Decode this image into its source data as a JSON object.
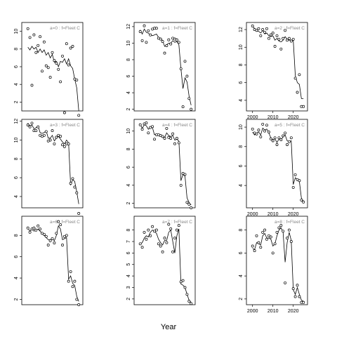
{
  "xlabel": "Year",
  "chart_data": [
    {
      "type": "scatter",
      "label": "a=0 : f=Fleet C",
      "xlim": [
        1997,
        2027
      ],
      "ylim": [
        1,
        11
      ],
      "yticks": [
        2,
        4,
        6,
        8,
        10
      ],
      "xticks": [],
      "x": [
        2000,
        2001,
        2002,
        2003,
        2004,
        2005,
        2006,
        2007,
        2008,
        2009,
        2010,
        2011,
        2012,
        2013,
        2014,
        2015,
        2016,
        2017,
        2018,
        2019,
        2020,
        2021,
        2022,
        2023,
        2024,
        2025
      ],
      "obs": [
        10.3,
        9.3,
        3.9,
        9.6,
        7.6,
        8.4,
        9.4,
        5.5,
        8.8,
        6.1,
        5.9,
        4.8,
        7.6,
        6.7,
        6.4,
        5.7,
        4.3,
        7.2,
        0.8,
        8.6,
        6.2,
        8.1,
        8.3,
        4.6,
        4.5,
        0.5
      ],
      "fit": [
        8.2,
        7.9,
        8.3,
        8.0,
        8.2,
        7.6,
        8.0,
        7.6,
        7.9,
        7.3,
        7.6,
        7.0,
        7.4,
        6.5,
        6.6,
        6.0,
        6.6,
        6.5,
        6.9,
        6.3,
        6.9,
        6.1,
        5.8,
        4.6,
        3.6,
        1.0
      ]
    },
    {
      "type": "scatter",
      "label": "a=3 : f=Fleet C",
      "xlim": [
        1997,
        2027
      ],
      "ylim": [
        2.8,
        12.2
      ],
      "yticks": [
        4,
        6,
        8,
        10,
        12
      ],
      "xticks": [],
      "x": [
        2000,
        2001,
        2002,
        2003,
        2004,
        2005,
        2006,
        2007,
        2008,
        2009,
        2010,
        2011,
        2012,
        2013,
        2014,
        2015,
        2016,
        2017,
        2018,
        2019,
        2020,
        2021,
        2022,
        2023,
        2024,
        2025
      ],
      "obs": [
        11.6,
        11.4,
        11.8,
        11.0,
        11.0,
        11.4,
        10.5,
        10.4,
        10.5,
        10.9,
        9.9,
        10.0,
        11.0,
        9.6,
        10.3,
        10.5,
        10.4,
        9.5,
        9.3,
        9.6,
        9.6,
        5.4,
        5.9,
        5.0,
        4.4,
        2.2
      ],
      "fit": [
        11.8,
        11.5,
        11.6,
        11.2,
        11.3,
        11.5,
        10.8,
        10.7,
        10.8,
        11.0,
        10.2,
        10.2,
        10.5,
        9.9,
        10.2,
        10.4,
        10.1,
        9.8,
        9.6,
        10.0,
        9.7,
        5.2,
        5.8,
        5.6,
        4.5,
        3.2
      ]
    },
    {
      "type": "scatter",
      "label": "a=6 : f=Fleet C",
      "xlim": [
        1997,
        2027
      ],
      "ylim": [
        1.5,
        9.8
      ],
      "yticks": [
        2,
        4,
        6,
        8
      ],
      "xticks": [],
      "x": [
        2000,
        2001,
        2002,
        2003,
        2004,
        2005,
        2006,
        2007,
        2008,
        2009,
        2010,
        2011,
        2012,
        2013,
        2014,
        2015,
        2016,
        2017,
        2018,
        2019,
        2020,
        2021,
        2022,
        2023,
        2024,
        2025
      ],
      "obs": [
        8.7,
        8.3,
        8.6,
        8.7,
        8.5,
        8.9,
        8.6,
        8.2,
        8.1,
        7.9,
        7.1,
        7.5,
        7.7,
        7.3,
        8.2,
        9.3,
        9.0,
        7.1,
        7.9,
        8.0,
        3.7,
        4.6,
        3.2,
        3.7,
        2.0,
        1.5
      ],
      "fit": [
        8.7,
        8.4,
        8.6,
        8.4,
        8.5,
        8.6,
        8.4,
        8.2,
        8.0,
        7.8,
        7.6,
        7.6,
        7.7,
        7.5,
        8.0,
        8.9,
        8.6,
        7.6,
        7.7,
        7.8,
        3.9,
        4.2,
        3.5,
        3.3,
        2.3,
        1.8
      ]
    },
    {
      "type": "scatter",
      "label": "a=1 : f=Fleet C",
      "xlim": [
        1997,
        2027
      ],
      "ylim": [
        1.8,
        12.5
      ],
      "yticks": [
        2,
        4,
        6,
        8,
        10,
        12
      ],
      "xticks": [],
      "x": [
        2000,
        2001,
        2002,
        2003,
        2004,
        2005,
        2006,
        2007,
        2008,
        2009,
        2010,
        2011,
        2012,
        2013,
        2014,
        2015,
        2016,
        2017,
        2018,
        2019,
        2020,
        2021,
        2022,
        2023,
        2024,
        2025
      ],
      "obs": [
        11.4,
        10.3,
        12.1,
        10.1,
        11.5,
        11.0,
        11.7,
        11.8,
        11.8,
        10.6,
        10.5,
        10.2,
        8.8,
        9.7,
        10.4,
        9.9,
        10.6,
        10.5,
        10.4,
        10.1,
        6.9,
        2.3,
        7.8,
        6.0,
        3.3,
        2.0
      ],
      "fit": [
        11.6,
        11.1,
        11.7,
        11.3,
        11.2,
        11.0,
        10.9,
        11.0,
        11.1,
        10.7,
        10.6,
        10.3,
        9.6,
        9.8,
        10.0,
        10.0,
        10.3,
        10.1,
        10.2,
        9.8,
        6.9,
        4.5,
        5.8,
        5.3,
        3.6,
        2.5
      ]
    },
    {
      "type": "scatter",
      "label": "a=4 : f=Fleet C",
      "xlim": [
        1997,
        2027
      ],
      "ylim": [
        1.5,
        11.3
      ],
      "yticks": [
        2,
        4,
        6,
        8,
        10
      ],
      "xticks": [],
      "x": [
        2000,
        2001,
        2002,
        2003,
        2004,
        2005,
        2006,
        2007,
        2008,
        2009,
        2010,
        2011,
        2012,
        2013,
        2014,
        2015,
        2016,
        2017,
        2018,
        2019,
        2020,
        2021,
        2022,
        2023,
        2024,
        2025
      ],
      "obs": [
        10.7,
        10.2,
        10.8,
        10.9,
        9.8,
        10.4,
        10.5,
        9.1,
        9.6,
        9.6,
        9.5,
        9.4,
        9.2,
        10.3,
        9.3,
        9.2,
        9.7,
        8.6,
        9.2,
        8.7,
        4.0,
        5.3,
        5.2,
        2.1,
        1.9,
        1.5
      ],
      "fit": [
        10.8,
        10.3,
        10.7,
        10.6,
        10.2,
        10.4,
        10.4,
        9.6,
        9.7,
        9.6,
        9.5,
        9.4,
        9.3,
        9.8,
        9.5,
        9.4,
        9.5,
        9.0,
        9.1,
        8.9,
        4.5,
        5.2,
        5.0,
        2.6,
        2.1,
        1.8
      ]
    },
    {
      "type": "scatter",
      "label": "a=7 : f=Fleet C",
      "xlim": [
        1997,
        2027
      ],
      "ylim": [
        1.5,
        9.2
      ],
      "yticks": [
        2,
        3,
        4,
        5,
        6,
        7,
        8
      ],
      "xticks": [],
      "x": [
        2000,
        2001,
        2002,
        2003,
        2004,
        2005,
        2006,
        2007,
        2008,
        2009,
        2010,
        2011,
        2012,
        2013,
        2014,
        2015,
        2016,
        2017,
        2018,
        2019,
        2020,
        2021,
        2022,
        2023,
        2024,
        2025
      ],
      "obs": [
        6.8,
        6.5,
        7.8,
        7.2,
        8.0,
        7.5,
        8.3,
        7.9,
        8.0,
        6.8,
        6.6,
        6.1,
        7.3,
        6.9,
        8.5,
        8.1,
        6.1,
        7.3,
        8.0,
        8.4,
        3.5,
        3.6,
        3.0,
        2.4,
        1.8,
        1.6
      ],
      "fit": [
        6.8,
        6.9,
        7.3,
        7.5,
        7.4,
        7.8,
        8.0,
        7.9,
        7.7,
        7.2,
        6.9,
        6.7,
        7.1,
        7.1,
        7.8,
        8.0,
        7.0,
        6.0,
        7.5,
        8.1,
        3.3,
        3.2,
        3.0,
        2.4,
        1.9,
        1.7
      ]
    },
    {
      "type": "scatter",
      "label": "a=2 : f=Fleet C",
      "xlim": [
        1997,
        2027
      ],
      "ylim": [
        2.8,
        12.8
      ],
      "yticks": [
        4,
        6,
        8,
        10,
        12
      ],
      "xticks": [
        2000,
        2010,
        2020
      ],
      "x": [
        2000,
        2001,
        2002,
        2003,
        2004,
        2005,
        2006,
        2007,
        2008,
        2009,
        2010,
        2011,
        2012,
        2013,
        2014,
        2015,
        2016,
        2017,
        2018,
        2019,
        2020,
        2021,
        2022,
        2023,
        2024,
        2025
      ],
      "obs": [
        12.4,
        12.0,
        11.9,
        12.1,
        11.3,
        12.0,
        11.7,
        12.1,
        11.0,
        11.4,
        11.6,
        10.1,
        11.3,
        10.9,
        9.8,
        11.0,
        11.9,
        10.8,
        11.0,
        10.7,
        10.9,
        6.5,
        4.9,
        6.9,
        3.3,
        3.3
      ],
      "fit": [
        12.4,
        12.1,
        11.8,
        11.8,
        11.6,
        11.9,
        11.5,
        11.6,
        11.3,
        11.2,
        11.3,
        10.8,
        11.0,
        10.7,
        10.6,
        10.8,
        11.2,
        10.9,
        10.8,
        10.8,
        10.8,
        6.8,
        6.0,
        5.8,
        4.2,
        4.2
      ]
    },
    {
      "type": "scatter",
      "label": "a=5 : f=Fleet C",
      "xlim": [
        1997,
        2027
      ],
      "ylim": [
        1.7,
        10.8
      ],
      "yticks": [
        4,
        6,
        8,
        10
      ],
      "xticks": [
        2000,
        2010,
        2020
      ],
      "x": [
        2000,
        2001,
        2002,
        2003,
        2004,
        2005,
        2006,
        2007,
        2008,
        2009,
        2010,
        2011,
        2012,
        2013,
        2014,
        2015,
        2016,
        2017,
        2018,
        2019,
        2020,
        2021,
        2022,
        2023,
        2024,
        2025
      ],
      "obs": [
        9.8,
        9.4,
        9.3,
        9.7,
        9.0,
        10.3,
        9.6,
        10.2,
        9.5,
        8.8,
        8.6,
        8.9,
        8.2,
        8.9,
        8.7,
        9.1,
        9.4,
        8.2,
        8.5,
        8.9,
        3.8,
        5.1,
        4.6,
        4.5,
        2.5,
        2.3
      ],
      "fit": [
        9.5,
        9.2,
        9.4,
        9.5,
        9.2,
        9.9,
        9.7,
        9.8,
        9.4,
        8.9,
        8.7,
        8.8,
        8.4,
        8.8,
        8.7,
        9.0,
        9.2,
        8.6,
        8.5,
        8.6,
        4.1,
        4.8,
        4.6,
        4.4,
        2.7,
        2.4
      ]
    },
    {
      "type": "scatter",
      "label": "a=8 : f=Fleet C",
      "xlim": [
        1997,
        2027
      ],
      "ylim": [
        1.5,
        9.2
      ],
      "yticks": [
        2,
        4,
        6,
        8
      ],
      "xticks": [
        2000,
        2010,
        2020
      ],
      "x": [
        2000,
        2001,
        2002,
        2003,
        2004,
        2005,
        2006,
        2007,
        2008,
        2009,
        2010,
        2011,
        2012,
        2013,
        2014,
        2015,
        2016,
        2017,
        2018,
        2019,
        2020,
        2021,
        2022,
        2023,
        2024,
        2025
      ],
      "obs": [
        6.6,
        6.2,
        7.5,
        6.9,
        6.5,
        7.8,
        8.0,
        7.2,
        7.5,
        7.4,
        6.0,
        6.8,
        7.8,
        8.2,
        8.4,
        7.9,
        3.4,
        7.3,
        8.0,
        7.0,
        2.9,
        2.2,
        3.2,
        2.2,
        1.7,
        1.7
      ],
      "fit": [
        6.4,
        6.3,
        6.9,
        6.8,
        6.7,
        7.5,
        7.7,
        7.3,
        7.3,
        7.2,
        6.6,
        6.8,
        7.5,
        8.0,
        8.2,
        7.8,
        5.2,
        6.9,
        7.8,
        7.1,
        2.8,
        2.4,
        3.0,
        2.4,
        1.9,
        1.8
      ]
    }
  ]
}
